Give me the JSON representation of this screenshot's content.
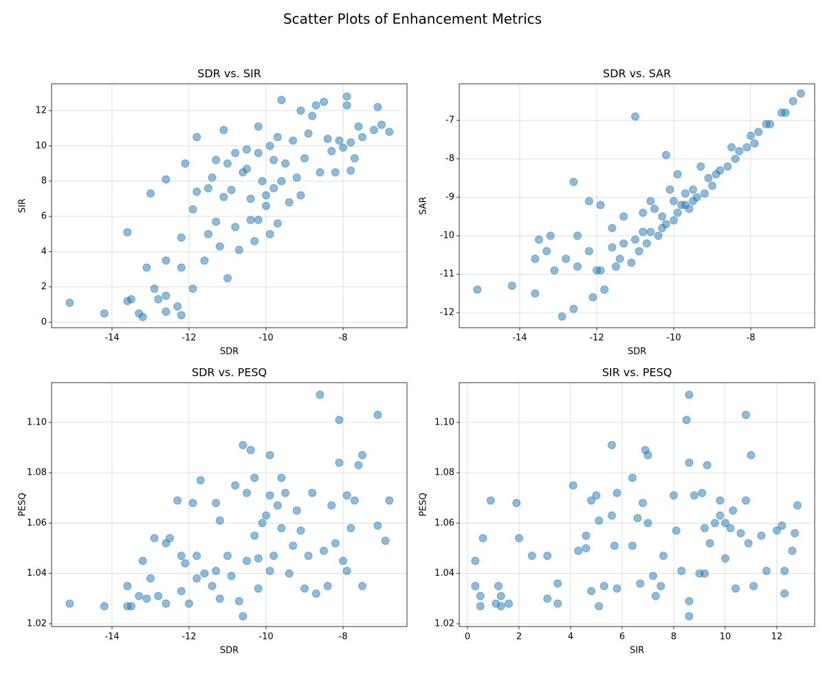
{
  "title": "Scatter Plots of Enhancement Metrics",
  "chart_data": [
    {
      "type": "scatter",
      "title": "SDR vs. SIR",
      "xlabel": "SDR",
      "ylabel": "SIR",
      "color": "#1f77b4",
      "grid": true,
      "xlim": [
        -15.57,
        -6.34
      ],
      "ylim": [
        -0.31,
        13.52
      ],
      "xticks": [
        -14,
        -12,
        -10,
        -8
      ],
      "yticks": [
        0,
        2,
        4,
        6,
        8,
        10,
        12
      ],
      "x": [
        -15.1,
        -14.2,
        -13.6,
        -13.6,
        -13.5,
        -13.3,
        -13.2,
        -13.1,
        -13.0,
        -12.9,
        -12.8,
        -12.6,
        -12.6,
        -12.6,
        -12.6,
        -12.3,
        -12.2,
        -12.2,
        -12.2,
        -12.1,
        -11.9,
        -11.9,
        -11.8,
        -11.8,
        -11.6,
        -11.5,
        -11.5,
        -11.4,
        -11.3,
        -11.3,
        -11.2,
        -11.1,
        -11.1,
        -11.0,
        -10.9,
        -10.8,
        -10.8,
        -10.7,
        -10.6,
        -10.5,
        -10.4,
        -10.4,
        -10.3,
        -10.2,
        -10.2,
        -10.2,
        -10.1,
        -10.0,
        -9.9,
        -9.8,
        -9.7,
        -9.7,
        -9.6,
        -9.6,
        -9.5,
        -9.4,
        -9.3,
        -9.2,
        -9.1,
        -9.1,
        -9.0,
        -8.9,
        -8.8,
        -8.7,
        -8.6,
        -8.5,
        -8.4,
        -8.3,
        -8.2,
        -8.1,
        -8.0,
        -7.9,
        -7.9,
        -7.8,
        -7.8,
        -7.7,
        -7.6,
        -7.5,
        -7.2,
        -7.1,
        -7.0,
        -6.8,
        -9.8,
        -10.5,
        -11.0,
        -9.9,
        -10.0
      ],
      "y": [
        1.1,
        0.5,
        5.1,
        1.2,
        1.3,
        0.5,
        0.3,
        3.1,
        7.3,
        1.9,
        1.3,
        8.1,
        3.5,
        1.5,
        0.6,
        0.9,
        4.8,
        3.1,
        0.4,
        9.0,
        6.4,
        1.9,
        7.4,
        10.5,
        3.5,
        5.0,
        7.6,
        8.2,
        9.2,
        5.7,
        4.3,
        10.9,
        7.1,
        2.5,
        7.5,
        9.6,
        5.4,
        4.1,
        8.5,
        9.8,
        5.8,
        7.0,
        4.6,
        11.1,
        9.6,
        5.8,
        8.0,
        7.2,
        5.0,
        9.2,
        5.6,
        10.5,
        12.6,
        8.0,
        9.0,
        6.8,
        10.3,
        8.2,
        12.0,
        7.2,
        9.3,
        10.7,
        11.7,
        12.3,
        8.5,
        12.5,
        10.4,
        9.7,
        8.5,
        10.3,
        9.9,
        12.8,
        12.3,
        8.6,
        10.2,
        9.3,
        11.1,
        10.5,
        10.9,
        12.2,
        11.2,
        10.8,
        7.6,
        8.7,
        9.0,
        10.0,
        6.6
      ]
    },
    {
      "type": "scatter",
      "title": "SDR vs. SAR",
      "xlabel": "SDR",
      "ylabel": "SAR",
      "color": "#1f77b4",
      "grid": true,
      "xlim": [
        -15.57,
        -6.34
      ],
      "ylim": [
        -12.39,
        -6.05
      ],
      "xticks": [
        -14,
        -12,
        -10,
        -8
      ],
      "yticks": [
        -12,
        -11,
        -10,
        -9,
        -8,
        -7
      ],
      "x": [
        -15.1,
        -14.2,
        -13.6,
        -13.6,
        -13.5,
        -13.3,
        -13.1,
        -13.2,
        -12.9,
        -12.8,
        -12.6,
        -12.6,
        -12.5,
        -12.5,
        -12.2,
        -12.2,
        -12.1,
        -12.0,
        -11.9,
        -11.9,
        -11.8,
        -11.6,
        -11.6,
        -11.5,
        -11.4,
        -11.3,
        -11.3,
        -11.1,
        -11.0,
        -11.0,
        -10.9,
        -10.8,
        -10.8,
        -10.7,
        -10.6,
        -10.6,
        -10.5,
        -10.4,
        -10.3,
        -10.2,
        -10.2,
        -10.1,
        -10.0,
        -9.9,
        -9.9,
        -9.8,
        -9.7,
        -9.6,
        -9.5,
        -9.4,
        -9.3,
        -9.2,
        -9.1,
        -9.0,
        -8.9,
        -8.8,
        -8.6,
        -8.5,
        -8.4,
        -8.3,
        -8.1,
        -8.0,
        -7.9,
        -7.8,
        -7.6,
        -7.5,
        -7.2,
        -7.1,
        -6.9,
        -6.7,
        -10.3,
        -9.7,
        -10.0,
        -9.5
      ],
      "y": [
        -11.4,
        -11.3,
        -11.5,
        -10.6,
        -10.1,
        -10.4,
        -10.9,
        -10.0,
        -12.1,
        -10.6,
        -8.6,
        -11.9,
        -10.0,
        -10.8,
        -10.4,
        -9.1,
        -11.6,
        -10.9,
        -10.9,
        -9.2,
        -11.4,
        -10.3,
        -9.8,
        -10.8,
        -10.6,
        -10.2,
        -9.5,
        -10.7,
        -6.9,
        -10.1,
        -10.4,
        -9.9,
        -9.4,
        -10.2,
        -9.1,
        -9.9,
        -9.3,
        -10.0,
        -9.5,
        -7.9,
        -9.7,
        -8.8,
        -9.1,
        -9.4,
        -8.4,
        -9.2,
        -8.9,
        -9.3,
        -8.8,
        -9.0,
        -8.2,
        -8.9,
        -8.5,
        -8.7,
        -8.4,
        -8.3,
        -8.2,
        -7.7,
        -8.0,
        -7.8,
        -7.7,
        -7.4,
        -7.6,
        -7.3,
        -7.1,
        -7.1,
        -6.8,
        -6.8,
        -6.5,
        -6.3,
        -9.8,
        -9.2,
        -9.6,
        -9.1
      ]
    },
    {
      "type": "scatter",
      "title": "SDR vs. PESQ",
      "xlabel": "SDR",
      "ylabel": "PESQ",
      "color": "#1f77b4",
      "grid": true,
      "xlim": [
        -15.57,
        -6.34
      ],
      "ylim": [
        1.0189,
        1.1158
      ],
      "xticks": [
        -14,
        -12,
        -10,
        -8
      ],
      "yticks": [
        1.02,
        1.04,
        1.06,
        1.08,
        {
          "value": 1.1,
          "label": "1.10"
        }
      ],
      "x": [
        -15.1,
        -14.2,
        -13.6,
        -13.6,
        -13.5,
        -13.3,
        -13.2,
        -13.1,
        -13.0,
        -12.9,
        -12.8,
        -12.6,
        -12.6,
        -12.5,
        -12.3,
        -12.2,
        -12.2,
        -12.1,
        -12.0,
        -11.9,
        -11.8,
        -11.8,
        -11.7,
        -11.6,
        -11.4,
        -11.3,
        -11.3,
        -11.2,
        -11.2,
        -11.0,
        -10.9,
        -10.8,
        -10.7,
        -10.6,
        -10.5,
        -10.5,
        -10.4,
        -10.3,
        -10.3,
        -10.2,
        -10.1,
        -10.0,
        -9.9,
        -9.9,
        -9.8,
        -9.7,
        -9.6,
        -9.6,
        -9.5,
        -9.4,
        -9.3,
        -9.2,
        -9.1,
        -9.0,
        -8.9,
        -8.8,
        -8.7,
        -8.6,
        -8.5,
        -8.4,
        -8.3,
        -8.2,
        -8.1,
        -8.1,
        -8.0,
        -7.9,
        -7.9,
        -7.8,
        -7.7,
        -7.6,
        -7.5,
        -7.5,
        -7.1,
        -7.1,
        -6.9,
        -6.8,
        -10.6,
        -9.9,
        -10.2
      ],
      "y": [
        1.028,
        1.027,
        1.035,
        1.027,
        1.027,
        1.031,
        1.045,
        1.03,
        1.038,
        1.054,
        1.031,
        1.052,
        1.028,
        1.054,
        1.069,
        1.047,
        1.033,
        1.044,
        1.028,
        1.068,
        1.038,
        1.047,
        1.077,
        1.04,
        1.035,
        1.068,
        1.041,
        1.061,
        1.03,
        1.047,
        1.039,
        1.075,
        1.029,
        1.091,
        1.072,
        1.045,
        1.089,
        1.078,
        1.055,
        1.034,
        1.06,
        1.063,
        1.087,
        1.071,
        1.047,
        1.067,
        1.078,
        1.058,
        1.072,
        1.04,
        1.051,
        1.065,
        1.057,
        1.034,
        1.047,
        1.072,
        1.032,
        1.111,
        1.049,
        1.035,
        1.067,
        1.052,
        1.101,
        1.084,
        1.045,
        1.071,
        1.041,
        1.058,
        1.069,
        1.083,
        1.087,
        1.035,
        1.103,
        1.059,
        1.053,
        1.069,
        1.023,
        1.041,
        1.046
      ]
    },
    {
      "type": "scatter",
      "title": "SIR vs. PESQ",
      "xlabel": "SIR",
      "ylabel": "PESQ",
      "color": "#1f77b4",
      "grid": true,
      "xlim": [
        -0.32,
        13.47
      ],
      "ylim": [
        1.0189,
        1.1158
      ],
      "xticks": [
        0,
        2,
        4,
        6,
        8,
        10,
        12
      ],
      "yticks": [
        1.02,
        1.04,
        1.06,
        1.08,
        {
          "value": 1.1,
          "label": "1.10"
        }
      ],
      "x": [
        0.3,
        0.3,
        0.5,
        0.5,
        0.6,
        0.9,
        1.1,
        1.2,
        1.3,
        1.3,
        1.6,
        1.9,
        2.0,
        2.5,
        3.1,
        3.1,
        3.5,
        3.5,
        4.1,
        4.3,
        4.6,
        4.6,
        4.8,
        4.8,
        5.0,
        5.1,
        5.1,
        5.3,
        5.6,
        5.6,
        5.7,
        5.8,
        5.8,
        6.4,
        6.4,
        6.6,
        6.7,
        6.8,
        6.9,
        7.0,
        7.0,
        7.2,
        7.3,
        7.5,
        7.6,
        8.0,
        8.1,
        8.3,
        8.5,
        8.6,
        8.6,
        8.6,
        8.8,
        9.0,
        9.1,
        9.2,
        9.3,
        9.4,
        9.6,
        9.8,
        9.8,
        10.0,
        10.2,
        10.3,
        10.4,
        10.6,
        10.8,
        10.8,
        10.9,
        11.0,
        11.1,
        11.4,
        11.6,
        12.0,
        12.2,
        12.3,
        12.3,
        12.6,
        12.7,
        12.8,
        8.6,
        9.2,
        10.0
      ],
      "y": [
        1.045,
        1.035,
        1.027,
        1.031,
        1.054,
        1.069,
        1.028,
        1.035,
        1.027,
        1.031,
        1.028,
        1.068,
        1.054,
        1.047,
        1.047,
        1.03,
        1.036,
        1.028,
        1.075,
        1.049,
        1.055,
        1.05,
        1.069,
        1.033,
        1.071,
        1.027,
        1.061,
        1.035,
        1.091,
        1.063,
        1.051,
        1.034,
        1.072,
        1.078,
        1.051,
        1.062,
        1.036,
        1.068,
        1.089,
        1.087,
        1.06,
        1.039,
        1.031,
        1.035,
        1.047,
        1.071,
        1.057,
        1.041,
        1.101,
        1.111,
        1.084,
        1.029,
        1.071,
        1.04,
        1.072,
        1.058,
        1.083,
        1.052,
        1.06,
        1.069,
        1.063,
        1.046,
        1.058,
        1.065,
        1.034,
        1.056,
        1.069,
        1.103,
        1.052,
        1.087,
        1.035,
        1.055,
        1.041,
        1.057,
        1.059,
        1.041,
        1.032,
        1.049,
        1.056,
        1.067,
        1.023,
        1.04,
        1.06
      ]
    }
  ]
}
